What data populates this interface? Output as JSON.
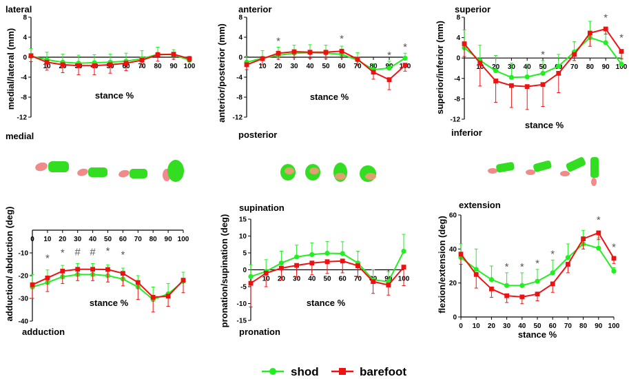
{
  "legend": {
    "shod": {
      "label": "shod",
      "color": "#22ee22"
    },
    "barefoot": {
      "label": "barefoot",
      "color": "#ee1111"
    }
  },
  "chart_data": [
    {
      "type": "line",
      "ylabel": "medial/lateral  (mm)",
      "xlabel": "stance %",
      "pos_label": "lateral",
      "neg_label": "medial",
      "x": [
        0,
        10,
        20,
        30,
        40,
        50,
        60,
        70,
        80,
        90,
        100
      ],
      "xticks": [
        "10",
        "20",
        "30",
        "40",
        "50",
        "60",
        "70",
        "80",
        "90",
        "100"
      ],
      "ylim": [
        -12,
        8
      ],
      "yticks": [
        "8",
        "4",
        "0",
        "-4",
        "-8",
        "-12"
      ],
      "x_axis_at_zero": true,
      "series": [
        {
          "name": "shod",
          "values": [
            0.2,
            -0.5,
            -1.0,
            -1.2,
            -1.1,
            -1.0,
            -0.8,
            -0.3,
            0.6,
            0.5,
            -0.6
          ],
          "err": [
            1.5,
            1.5,
            1.6,
            1.6,
            1.6,
            1.6,
            1.6,
            1.6,
            1.4,
            1.0,
            0.8
          ]
        },
        {
          "name": "barefoot",
          "values": [
            0.3,
            -1.0,
            -1.5,
            -1.7,
            -1.7,
            -1.5,
            -1.2,
            -0.6,
            0.5,
            0.6,
            -0.3
          ],
          "err": [
            1.2,
            1.6,
            1.6,
            1.8,
            1.8,
            1.7,
            1.5,
            1.4,
            1.3,
            1.0,
            0.6
          ]
        }
      ],
      "annotations": []
    },
    {
      "type": "line",
      "ylabel": "anterior/posterior (mm)",
      "xlabel": "stance %",
      "pos_label": "anterior",
      "neg_label": "posterior",
      "x": [
        0,
        10,
        20,
        30,
        40,
        50,
        60,
        70,
        80,
        90,
        100
      ],
      "xticks": [
        "10",
        "20",
        "30",
        "40",
        "50",
        "60",
        "70",
        "80",
        "90",
        "100"
      ],
      "ylim": [
        -12,
        8
      ],
      "yticks": [
        "8",
        "4",
        "0",
        "-4",
        "-8",
        "-12"
      ],
      "x_axis_at_zero": true,
      "series": [
        {
          "name": "shod",
          "values": [
            -1.0,
            -0.2,
            0.4,
            0.8,
            0.9,
            0.8,
            0.6,
            -0.6,
            -2.5,
            -2.2,
            -0.2
          ],
          "err": [
            1.2,
            1.5,
            1.6,
            1.6,
            1.6,
            1.6,
            1.6,
            1.5,
            1.2,
            1.4,
            1.0
          ]
        },
        {
          "name": "barefoot",
          "values": [
            -1.5,
            -0.3,
            0.8,
            1.1,
            1.0,
            1.0,
            1.2,
            -0.4,
            -3.0,
            -4.5,
            -1.6
          ],
          "err": [
            1.0,
            1.2,
            1.2,
            1.2,
            1.2,
            1.3,
            1.3,
            1.3,
            1.4,
            2.0,
            1.2
          ]
        }
      ],
      "annotations": [
        {
          "x": 20,
          "text": "*"
        },
        {
          "x": 60,
          "text": "*"
        },
        {
          "x": 90,
          "text": "*"
        },
        {
          "x": 100,
          "text": "*"
        }
      ]
    },
    {
      "type": "line",
      "ylabel": "superior/inferior (mm)",
      "xlabel": "stance %",
      "pos_label": "superior",
      "neg_label": "inferior",
      "x": [
        0,
        10,
        20,
        30,
        40,
        50,
        60,
        70,
        80,
        90,
        100
      ],
      "xticks": [
        "10",
        "20",
        "30",
        "40",
        "50",
        "60",
        "70",
        "80",
        "90",
        "100"
      ],
      "ylim": [
        -12,
        8
      ],
      "yticks": [
        "8",
        "4",
        "0",
        "-4",
        "-8",
        "-12"
      ],
      "x_axis_at_zero": true,
      "series": [
        {
          "name": "shod",
          "values": [
            2.0,
            -0.5,
            -2.5,
            -3.8,
            -3.7,
            -3.0,
            -1.6,
            1.2,
            4.0,
            3.0,
            -1.2
          ],
          "err": [
            3.5,
            3.0,
            3.0,
            2.8,
            2.5,
            2.5,
            2.3,
            2.0,
            3.2,
            2.5,
            1.2
          ]
        },
        {
          "name": "barefoot",
          "values": [
            2.8,
            -1.0,
            -4.5,
            -5.4,
            -5.6,
            -5.2,
            -3.0,
            0.7,
            4.9,
            5.7,
            1.3
          ],
          "err": [
            2.5,
            4.5,
            4.2,
            4.3,
            4.5,
            4.3,
            3.8,
            1.2,
            2.6,
            1.0,
            1.5
          ]
        }
      ],
      "annotations": [
        {
          "x": 50,
          "text": "*"
        },
        {
          "x": 90,
          "text": "*"
        },
        {
          "x": 100,
          "text": "*"
        }
      ]
    },
    {
      "type": "line",
      "ylabel": "adduction/ abduction (deg)",
      "xlabel": "stance %",
      "pos_label": "",
      "neg_label": "adduction",
      "x": [
        0,
        10,
        20,
        30,
        40,
        50,
        60,
        70,
        80,
        90,
        100
      ],
      "xticks": [
        "0",
        "10",
        "20",
        "30",
        "40",
        "50",
        "60",
        "70",
        "80",
        "90",
        "100"
      ],
      "ylim": [
        -40,
        0
      ],
      "yticks": [
        "-10",
        "-20",
        "-30",
        "-40"
      ],
      "x_axis_at_zero": true,
      "series": [
        {
          "name": "shod",
          "values": [
            -25.0,
            -23.0,
            -20.5,
            -19.5,
            -19.5,
            -20.0,
            -21.5,
            -25.0,
            -30.5,
            -28.0,
            -22.5
          ],
          "err": [
            5.5,
            5.5,
            5.0,
            4.8,
            4.8,
            4.8,
            4.8,
            5.0,
            5.5,
            4.5,
            4.0
          ]
        },
        {
          "name": "barefoot",
          "values": [
            -24.0,
            -21.0,
            -18.0,
            -17.2,
            -17.2,
            -17.3,
            -19.0,
            -23.0,
            -29.5,
            -29.0,
            -22.0
          ],
          "err": [
            6.0,
            6.0,
            5.5,
            5.0,
            5.0,
            5.5,
            5.5,
            7.5,
            6.5,
            4.5,
            5.5
          ]
        }
      ],
      "annotations": [
        {
          "x": 10,
          "text": "*"
        },
        {
          "x": 20,
          "text": "*"
        },
        {
          "x": 30,
          "text": "#"
        },
        {
          "x": 40,
          "text": "#"
        },
        {
          "x": 50,
          "text": "*"
        },
        {
          "x": 60,
          "text": "*"
        }
      ]
    },
    {
      "type": "line",
      "ylabel": "pronation/supination (deg)",
      "xlabel": "stance %",
      "pos_label": "supination",
      "neg_label": "pronation",
      "x": [
        0,
        10,
        20,
        30,
        40,
        50,
        60,
        70,
        80,
        90,
        100
      ],
      "xticks": [
        "10",
        "20",
        "30",
        "40",
        "50",
        "60",
        "70",
        "80",
        "90",
        "100"
      ],
      "ylim": [
        -15,
        15
      ],
      "yticks": [
        "15",
        "10",
        "5",
        "0",
        "-5",
        "-10",
        "-15"
      ],
      "x_axis_at_zero": true,
      "series": [
        {
          "name": "shod",
          "values": [
            -2.0,
            -0.5,
            2.0,
            3.8,
            4.5,
            4.9,
            4.8,
            2.0,
            -3.0,
            -3.5,
            5.5
          ],
          "err": [
            3.5,
            3.5,
            3.5,
            3.5,
            3.5,
            3.5,
            3.5,
            3.5,
            3.0,
            3.0,
            5.0
          ]
        },
        {
          "name": "barefoot",
          "values": [
            -4.0,
            -1.0,
            0.5,
            1.3,
            2.0,
            2.4,
            2.6,
            1.2,
            -3.5,
            -4.5,
            0.8
          ],
          "err": [
            7.0,
            4.0,
            3.5,
            3.5,
            3.5,
            3.5,
            3.5,
            3.5,
            3.5,
            3.0,
            5.5
          ]
        }
      ],
      "annotations": []
    },
    {
      "type": "line",
      "ylabel": "flexion/extension (deg)",
      "xlabel": "stance %",
      "pos_label": "extension",
      "neg_label": "",
      "x": [
        0,
        10,
        20,
        30,
        40,
        50,
        60,
        70,
        80,
        90,
        100
      ],
      "xticks": [
        "0",
        "10",
        "20",
        "30",
        "40",
        "50",
        "60",
        "70",
        "80",
        "90",
        "100"
      ],
      "ylim": [
        0,
        60
      ],
      "yticks": [
        "60",
        "40",
        "20",
        "0"
      ],
      "x_axis_at_zero": true,
      "series": [
        {
          "name": "shod",
          "values": [
            35.0,
            28.0,
            22.0,
            18.5,
            18.5,
            21.0,
            26.0,
            35.0,
            43.0,
            40.5,
            27.0
          ],
          "err": [
            8.0,
            12.0,
            8.0,
            7.5,
            7.5,
            7.0,
            7.5,
            8.0,
            8.0,
            6.0,
            2.0
          ]
        },
        {
          "name": "barefoot",
          "values": [
            37.0,
            25.0,
            16.5,
            12.5,
            11.8,
            13.5,
            19.5,
            31.0,
            46.0,
            49.5,
            34.5
          ],
          "err": [
            6.0,
            8.0,
            5.0,
            4.0,
            4.0,
            4.0,
            5.0,
            5.0,
            6.0,
            4.0,
            3.0
          ]
        }
      ],
      "annotations": [
        {
          "x": 30,
          "text": "*"
        },
        {
          "x": 40,
          "text": "*"
        },
        {
          "x": 50,
          "text": "*"
        },
        {
          "x": 60,
          "text": "*"
        },
        {
          "x": 90,
          "text": "*"
        },
        {
          "x": 100,
          "text": "*"
        }
      ]
    }
  ]
}
